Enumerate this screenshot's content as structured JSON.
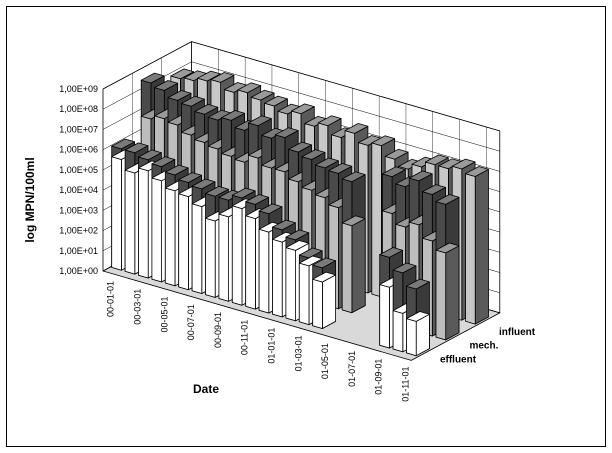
{
  "chart_data": {
    "type": "bar",
    "subtype": "3d-column",
    "title": "",
    "xlabel": "Date",
    "ylabel": "log MPN/100ml",
    "x_tick_labels": [
      "00-01-01",
      "00-03-01",
      "00-05-01",
      "00-07-01",
      "00-09-01",
      "00-11-01",
      "01-01-01",
      "01-03-01",
      "01-05-01",
      "01-07-01",
      "01-09-01",
      "01-11-01"
    ],
    "y_tick_labels": [
      "1,00E+00",
      "1,00E+01",
      "1,00E+02",
      "1,00E+03",
      "1,00E+04",
      "1,00E+05",
      "1,00E+06",
      "1,00E+07",
      "1,00E+08",
      "1,00E+09"
    ],
    "ylim": [
      1,
      1000000000
    ],
    "log_scale": true,
    "grid": true,
    "n_samples": 23,
    "series": [
      {
        "name": "effluent",
        "color": "#ffffff",
        "values": [
          300000.0,
          100000.0,
          200000.0,
          100000.0,
          50000.0,
          40000.0,
          20000.0,
          6000.0,
          15000.0,
          60000.0,
          30000.0,
          10000.0,
          5000.0,
          3000.0,
          800,
          200,
          null,
          null,
          null,
          null,
          1000.0,
          80,
          50
        ],
        "values_upper": [
          1000000.0,
          1000000.0,
          700000.0,
          500000.0,
          300000.0,
          200000.0,
          150000.0,
          100000.0,
          100000.0,
          200000.0,
          150000.0,
          80000.0,
          20000.0,
          10000.0,
          2000.0,
          1000.0,
          null,
          null,
          null,
          null,
          30000.0,
          8000.0,
          2000.0
        ]
      },
      {
        "name": "mech.",
        "color": "#bfbfbf",
        "values": [
          5000000.0,
          8000000.0,
          6000000.0,
          3000000.0,
          2000000.0,
          1500000.0,
          1000000.0,
          800000.0,
          2000000.0,
          1000000.0,
          1000000.0,
          500000.0,
          300000.0,
          200000.0,
          100000.0,
          20000.0,
          null,
          null,
          300000.0,
          100000.0,
          200000.0,
          50000.0,
          20000.0
        ],
        "values_upper": [
          300000000.0,
          200000000.0,
          100000000.0,
          80000000.0,
          50000000.0,
          40000000.0,
          60000000.0,
          30000000.0,
          80000000.0,
          30000000.0,
          50000000.0,
          15000000.0,
          10000000.0,
          6000000.0,
          5000000.0,
          3000000.0,
          null,
          null,
          20000000.0,
          10000000.0,
          30000000.0,
          10000000.0,
          5000000.0
        ]
      },
      {
        "name": "influent",
        "color": "#bfbfbf",
        "values": [
          80000000.0,
          100000000.0,
          150000000.0,
          200000000.0,
          100000000.0,
          150000000.0,
          100000000.0,
          80000000.0,
          50000000.0,
          80000000.0,
          30000000.0,
          50000000.0,
          20000000.0,
          50000000.0,
          20000000.0,
          30000000.0,
          10000000.0,
          5000000.0,
          10000000.0,
          20000000.0,
          20000000.0,
          30000000.0,
          20000000.0
        ]
      }
    ],
    "legend_placement": "right-depth-labels"
  }
}
